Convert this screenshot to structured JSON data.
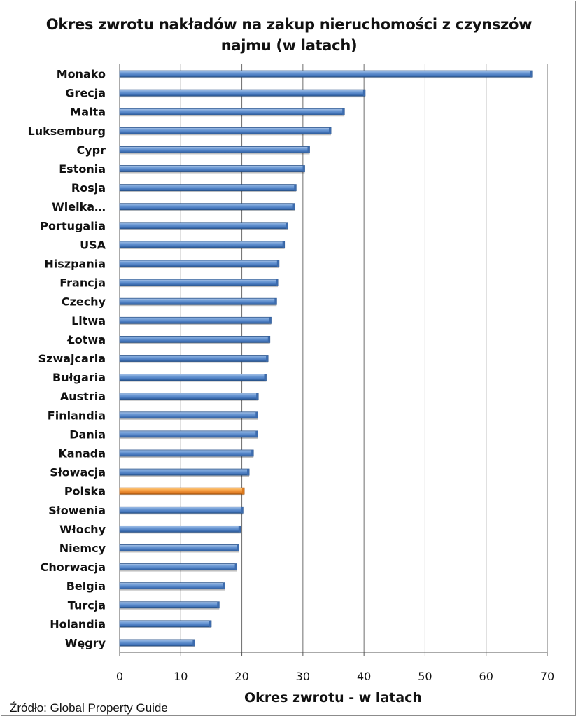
{
  "chart_data": {
    "type": "bar",
    "orientation": "horizontal",
    "title": "Okres zwrotu nakładów na zakup nieruchomości z czynszów najmu (w latach)",
    "title_lines": [
      "Okres zwrotu nakładów na zakup nieruchomości z czynszów",
      "najmu (w latach)"
    ],
    "xlabel": "Okres zwrotu - w latach",
    "ylabel": "",
    "xlim": [
      0,
      70
    ],
    "xticks": [
      0,
      10,
      20,
      30,
      40,
      50,
      60,
      70
    ],
    "grid": true,
    "categories": [
      "Monako",
      "Grecja",
      "Malta",
      "Luksemburg",
      "Cypr",
      "Estonia",
      "Rosja",
      "Wielka…",
      "Portugalia",
      "USA",
      "Hiszpania",
      "Francja",
      "Czechy",
      "Litwa",
      "Łotwa",
      "Szwajcaria",
      "Bułgaria",
      "Austria",
      "Finlandia",
      "Dania",
      "Kanada",
      "Słowacja",
      "Polska",
      "Słowenia",
      "Włochy",
      "Niemcy",
      "Chorwacja",
      "Belgia",
      "Turcja",
      "Holandia",
      "Węgry"
    ],
    "values": [
      67.5,
      40.2,
      36.8,
      34.6,
      31.1,
      30.3,
      28.9,
      28.7,
      27.5,
      27.0,
      26.1,
      25.9,
      25.7,
      24.8,
      24.6,
      24.3,
      24.0,
      22.7,
      22.6,
      22.6,
      21.9,
      21.2,
      20.4,
      20.2,
      19.8,
      19.5,
      19.2,
      17.2,
      16.3,
      15.0,
      12.3
    ],
    "highlight": "Polska",
    "colors": {
      "bar": "#4f81bd",
      "bar_highlight": "#f79646",
      "grid": "#6e6e6e"
    }
  },
  "source": "Źródło: Global Property Guide"
}
